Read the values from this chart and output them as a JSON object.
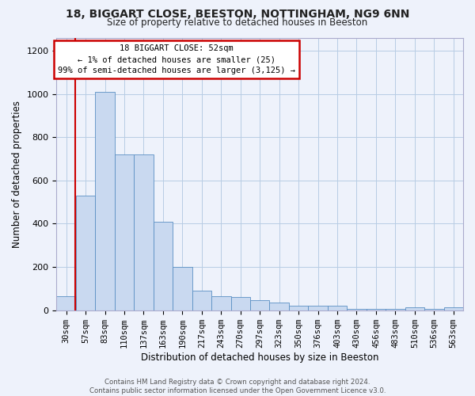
{
  "title1": "18, BIGGART CLOSE, BEESTON, NOTTINGHAM, NG9 6NN",
  "title2": "Size of property relative to detached houses in Beeston",
  "xlabel": "Distribution of detached houses by size in Beeston",
  "ylabel": "Number of detached properties",
  "categories": [
    "30sqm",
    "57sqm",
    "83sqm",
    "110sqm",
    "137sqm",
    "163sqm",
    "190sqm",
    "217sqm",
    "243sqm",
    "270sqm",
    "297sqm",
    "323sqm",
    "350sqm",
    "376sqm",
    "403sqm",
    "430sqm",
    "456sqm",
    "483sqm",
    "510sqm",
    "536sqm",
    "563sqm"
  ],
  "values": [
    65,
    530,
    1010,
    720,
    720,
    410,
    200,
    90,
    65,
    60,
    45,
    35,
    20,
    20,
    20,
    5,
    5,
    5,
    15,
    5,
    15
  ],
  "bar_color": "#c9d9f0",
  "bar_edge_color": "#5a8fc3",
  "grid_color": "#b8cce4",
  "annotation_text_line1": "18 BIGGART CLOSE: 52sqm",
  "annotation_text_line2": "← 1% of detached houses are smaller (25)",
  "annotation_text_line3": "99% of semi-detached houses are larger (3,125) →",
  "annotation_box_facecolor": "#ffffff",
  "annotation_border_color": "#cc0000",
  "red_line_color": "#cc0000",
  "footer_text": "Contains HM Land Registry data © Crown copyright and database right 2024.\nContains public sector information licensed under the Open Government Licence v3.0.",
  "ylim": [
    0,
    1260
  ],
  "yticks": [
    0,
    200,
    400,
    600,
    800,
    1000,
    1200
  ],
  "background_color": "#eef2fb",
  "title1_fontsize": 10,
  "title2_fontsize": 8.5,
  "ylabel_fontsize": 8.5,
  "xlabel_fontsize": 8.5,
  "tick_fontsize": 7.5,
  "annotation_fontsize": 7.5,
  "footer_fontsize": 6.2
}
